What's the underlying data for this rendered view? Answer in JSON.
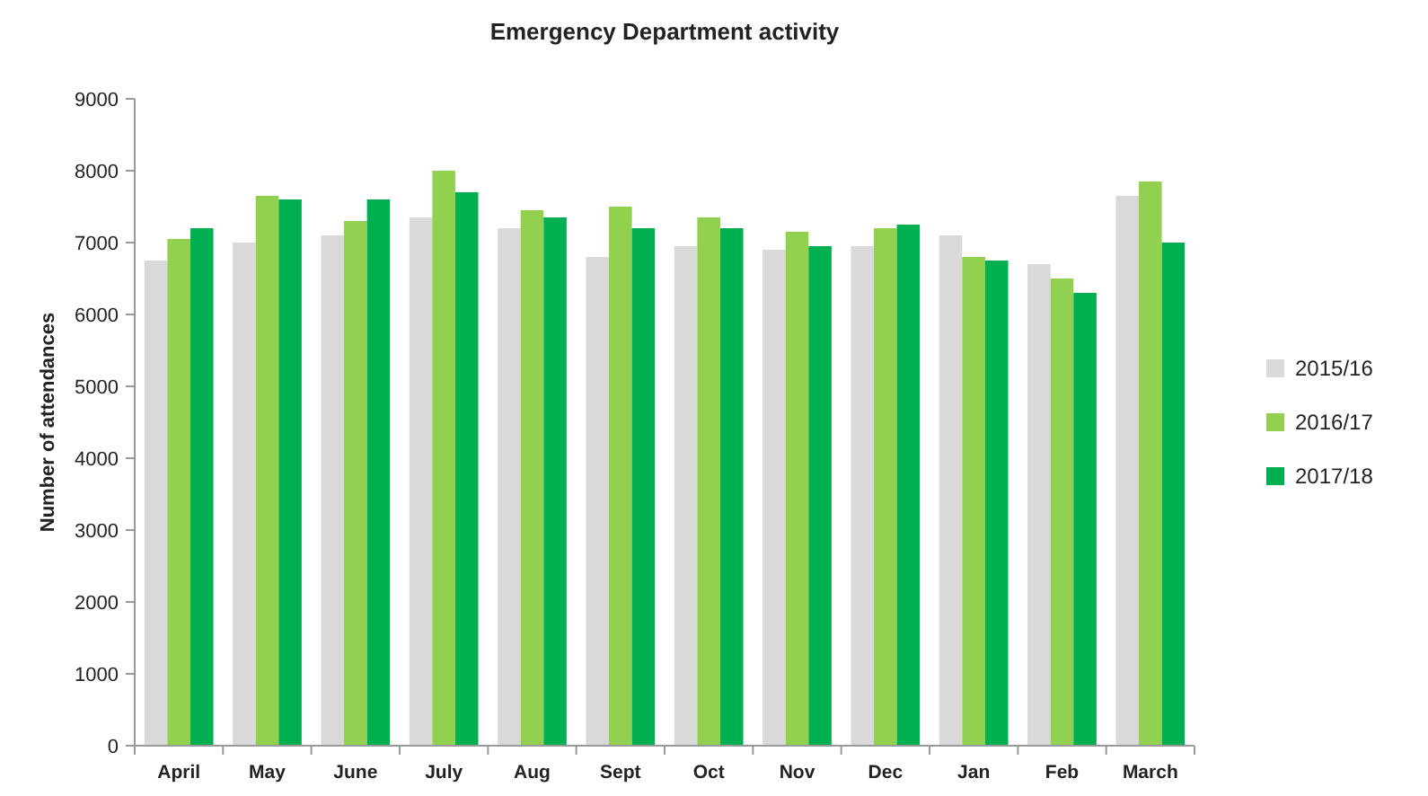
{
  "chart_data": {
    "type": "bar",
    "title": "Emergency Department activity",
    "ylabel": "Number of attendances",
    "categories": [
      "April",
      "May",
      "June",
      "July",
      "Aug",
      "Sept",
      "Oct",
      "Nov",
      "Dec",
      "Jan",
      "Feb",
      "March"
    ],
    "series": [
      {
        "name": "2015/16",
        "color": "#d9d9d9",
        "values": [
          6750,
          7000,
          7100,
          7350,
          7200,
          6800,
          6950,
          6900,
          6950,
          7100,
          6700,
          7650
        ]
      },
      {
        "name": "2016/17",
        "color": "#92d050",
        "values": [
          7050,
          7650,
          7300,
          8000,
          7450,
          7500,
          7350,
          7150,
          7200,
          6800,
          6500,
          7850
        ]
      },
      {
        "name": "2017/18",
        "color": "#00b050",
        "values": [
          7200,
          7600,
          7600,
          7700,
          7350,
          7200,
          7200,
          6950,
          7250,
          6750,
          6300,
          7000
        ]
      }
    ],
    "ylim": [
      0,
      9000
    ],
    "yticks": [
      0,
      1000,
      2000,
      3000,
      4000,
      5000,
      6000,
      7000,
      8000,
      9000
    ],
    "grid": false,
    "legend": "right"
  }
}
